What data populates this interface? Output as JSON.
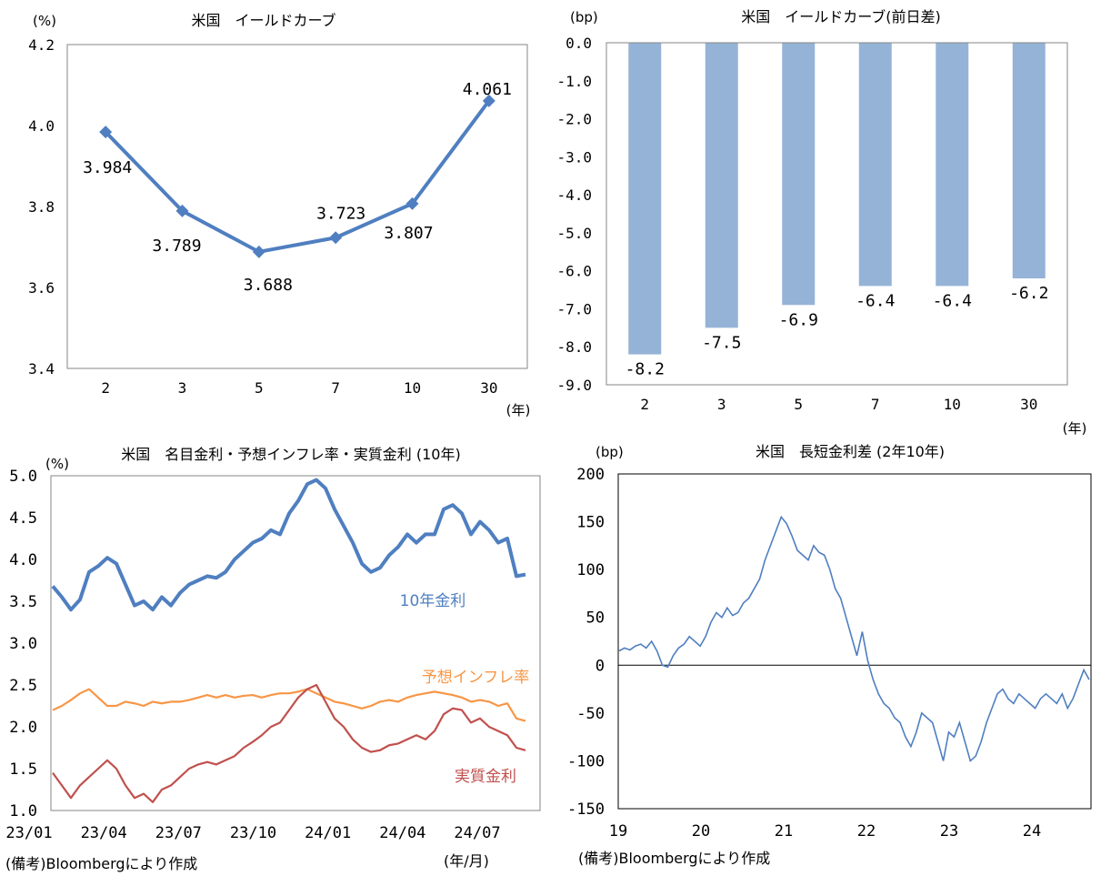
{
  "chart_data": [
    {
      "type": "line",
      "title": "米国　イールドカーブ",
      "ylabel": "(%)",
      "xlabel": "(年)",
      "categories": [
        "2",
        "3",
        "5",
        "7",
        "10",
        "30"
      ],
      "values": [
        3.984,
        3.789,
        3.688,
        3.723,
        3.807,
        4.061
      ],
      "data_labels": [
        "3.984",
        "3.789",
        "3.688",
        "3.723",
        "3.807",
        "4.061"
      ],
      "ylim": [
        3.4,
        4.2
      ],
      "yticks": [
        "3.4",
        "3.6",
        "3.8",
        "4.0",
        "4.2"
      ],
      "color": "#4f7fc0"
    },
    {
      "type": "bar",
      "title": "米国　イールドカーブ(前日差)",
      "ylabel": "(bp)",
      "xlabel": "(年)",
      "categories": [
        "2",
        "3",
        "5",
        "7",
        "10",
        "30"
      ],
      "values": [
        -8.2,
        -7.5,
        -6.9,
        -6.4,
        -6.4,
        -6.2
      ],
      "data_labels": [
        "-8.2",
        "-7.5",
        "-6.9",
        "-6.4",
        "-6.4",
        "-6.2"
      ],
      "ylim": [
        -9.0,
        0.0
      ],
      "yticks": [
        "0.0",
        "-1.0",
        "-2.0",
        "-3.0",
        "-4.0",
        "-5.0",
        "-6.0",
        "-7.0",
        "-8.0",
        "-9.0"
      ],
      "color": "#95b3d7"
    },
    {
      "type": "line",
      "title": "米国　名目金利・予想インフレ率・実質金利 (10年)",
      "ylabel": "(%)",
      "xlabel": "(年/月)",
      "ylim": [
        1.0,
        5.0
      ],
      "yticks": [
        "1.0",
        "1.5",
        "2.0",
        "2.5",
        "3.0",
        "3.5",
        "4.0",
        "4.5",
        "5.0"
      ],
      "xticks": [
        "23/01",
        "23/04",
        "23/07",
        "23/10",
        "24/01",
        "24/04",
        "24/07"
      ],
      "note": "(備考)Bloombergにより作成",
      "series": [
        {
          "name": "10年金利",
          "color": "#4f7fc0",
          "values": [
            3.68,
            3.55,
            3.4,
            3.52,
            3.85,
            3.92,
            4.02,
            3.95,
            3.7,
            3.45,
            3.5,
            3.4,
            3.55,
            3.45,
            3.6,
            3.7,
            3.75,
            3.8,
            3.78,
            3.85,
            4.0,
            4.1,
            4.2,
            4.25,
            4.35,
            4.3,
            4.55,
            4.7,
            4.9,
            4.95,
            4.85,
            4.6,
            4.4,
            4.2,
            3.95,
            3.85,
            3.9,
            4.05,
            4.15,
            4.3,
            4.2,
            4.3,
            4.3,
            4.6,
            4.65,
            4.55,
            4.3,
            4.45,
            4.35,
            4.2,
            4.25,
            3.8,
            3.82
          ]
        },
        {
          "name": "予想インフレ率",
          "color": "#f79646",
          "values": [
            2.2,
            2.25,
            2.32,
            2.4,
            2.45,
            2.35,
            2.25,
            2.25,
            2.3,
            2.28,
            2.25,
            2.3,
            2.28,
            2.3,
            2.3,
            2.32,
            2.35,
            2.38,
            2.35,
            2.38,
            2.35,
            2.37,
            2.38,
            2.35,
            2.38,
            2.4,
            2.4,
            2.42,
            2.45,
            2.4,
            2.35,
            2.3,
            2.28,
            2.25,
            2.22,
            2.25,
            2.3,
            2.32,
            2.3,
            2.35,
            2.38,
            2.4,
            2.42,
            2.4,
            2.38,
            2.35,
            2.3,
            2.32,
            2.3,
            2.25,
            2.28,
            2.1,
            2.07
          ]
        },
        {
          "name": "実質金利",
          "color": "#c0504d",
          "values": [
            1.45,
            1.3,
            1.15,
            1.3,
            1.4,
            1.5,
            1.6,
            1.5,
            1.3,
            1.15,
            1.2,
            1.1,
            1.25,
            1.3,
            1.4,
            1.5,
            1.55,
            1.58,
            1.55,
            1.6,
            1.65,
            1.75,
            1.82,
            1.9,
            2.0,
            2.05,
            2.2,
            2.35,
            2.45,
            2.5,
            2.3,
            2.1,
            2.0,
            1.85,
            1.75,
            1.7,
            1.72,
            1.78,
            1.8,
            1.85,
            1.9,
            1.85,
            1.95,
            2.15,
            2.22,
            2.2,
            2.05,
            2.1,
            2.0,
            1.95,
            1.9,
            1.75,
            1.72
          ]
        }
      ]
    },
    {
      "type": "line",
      "title": "米国　長短金利差 (2年10年)",
      "ylabel": "(bp)",
      "ylim": [
        -150,
        200
      ],
      "yticks": [
        "200",
        "150",
        "100",
        "50",
        "0",
        "-50",
        "-100",
        "-150"
      ],
      "xticks": [
        "19",
        "20",
        "21",
        "22",
        "23",
        "24"
      ],
      "note": "(備考)Bloombergにより作成",
      "series": [
        {
          "name": "長短金利差",
          "color": "#4f7fc0",
          "values": [
            15,
            18,
            16,
            20,
            22,
            18,
            25,
            15,
            0,
            -2,
            10,
            18,
            22,
            30,
            25,
            20,
            30,
            45,
            55,
            50,
            60,
            52,
            55,
            65,
            70,
            80,
            90,
            110,
            125,
            140,
            155,
            148,
            135,
            120,
            115,
            110,
            125,
            118,
            115,
            100,
            80,
            70,
            50,
            30,
            10,
            35,
            5,
            -15,
            -30,
            -40,
            -45,
            -55,
            -60,
            -75,
            -85,
            -70,
            -50,
            -55,
            -60,
            -80,
            -100,
            -70,
            -75,
            -60,
            -80,
            -100,
            -95,
            -80,
            -60,
            -45,
            -30,
            -25,
            -35,
            -40,
            -30,
            -35,
            -40,
            -45,
            -35,
            -30,
            -35,
            -40,
            -30,
            -45,
            -35,
            -20,
            -5,
            -15
          ]
        }
      ]
    }
  ]
}
